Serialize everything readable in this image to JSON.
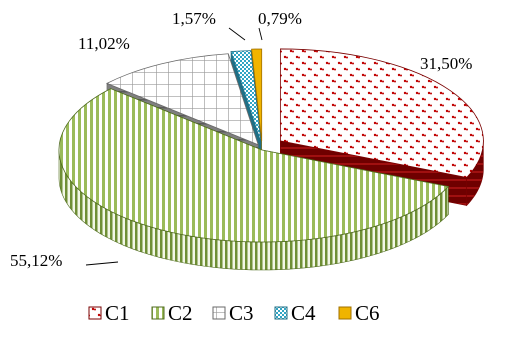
{
  "chart_data": {
    "type": "pie",
    "style": "3d-exploded",
    "title": "",
    "legend_position": "bottom",
    "slices": [
      {
        "name": "C1",
        "value": 31.5,
        "label": "31,50%",
        "color": "#c00000"
      },
      {
        "name": "C2",
        "value": 55.12,
        "label": "55,12%",
        "color": "#9bbb59"
      },
      {
        "name": "C3",
        "value": 11.02,
        "label": "11,02%",
        "color": "#a6a6a6"
      },
      {
        "name": "C4",
        "value": 1.57,
        "label": "1,57%",
        "color": "#31a5c4"
      },
      {
        "name": "C6",
        "value": 0.79,
        "label": "0,79%",
        "color": "#f0b400"
      }
    ]
  }
}
